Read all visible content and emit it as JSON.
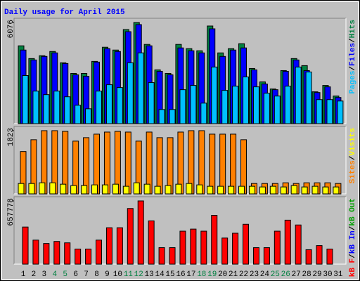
{
  "chart_data": [
    {
      "type": "bar",
      "title": "Daily usage for April 2015",
      "title_color": "#0000ff",
      "ylim": [
        0,
        6076
      ],
      "yticks": [
        6076
      ],
      "legend_separator": "/",
      "series": [
        {
          "name": "Pages",
          "color": "#00c0ff",
          "values": [
            2890,
            1955,
            1743,
            1955,
            1615,
            1105,
            893,
            1955,
            2338,
            2168,
            3655,
            4250,
            2465,
            850,
            850,
            2040,
            2295,
            1233,
            3400,
            1998,
            2253,
            2805,
            2210,
            1828,
            1658,
            2253,
            3400,
            3103,
            1445,
            1445,
            1360
          ]
        },
        {
          "name": "Files",
          "color": "#0000ff",
          "values": [
            4420,
            3825,
            4038,
            4250,
            3613,
            2933,
            2848,
            3698,
            4505,
            4335,
            5525,
            5950,
            4675,
            3145,
            2933,
            4548,
            4378,
            4250,
            5695,
            4038,
            4420,
            4548,
            3230,
            2380,
            2040,
            3145,
            3825,
            3188,
            1870,
            2210,
            1573
          ]
        },
        {
          "name": "Hits",
          "color": "#008040",
          "values": [
            4675,
            3910,
            4080,
            4335,
            3655,
            3018,
            3018,
            3740,
            4590,
            4420,
            5653,
            6076,
            4760,
            3230,
            3018,
            4760,
            4505,
            4378,
            5865,
            4250,
            4505,
            4803,
            3315,
            2508,
            2083,
            3188,
            3910,
            3485,
            1913,
            2295,
            1658
          ]
        }
      ]
    },
    {
      "type": "bar",
      "ylim": [
        0,
        1823
      ],
      "yticks": [
        1823
      ],
      "legend_separator": "/",
      "series": [
        {
          "name": "Sites",
          "color": "#ff8000",
          "values": [
            1222,
            1562,
            1823,
            1823,
            1803,
            1522,
            1622,
            1723,
            1783,
            1803,
            1783,
            1522,
            1783,
            1622,
            1622,
            1783,
            1823,
            1823,
            1723,
            1723,
            1723,
            1562,
            300,
            300,
            300,
            320,
            300,
            320,
            320,
            320,
            300
          ]
        },
        {
          "name": "Visits",
          "color": "#ffff00",
          "values": [
            300,
            300,
            320,
            320,
            280,
            240,
            240,
            260,
            260,
            280,
            220,
            320,
            280,
            220,
            240,
            280,
            300,
            260,
            220,
            220,
            220,
            220,
            220,
            200,
            220,
            200,
            240,
            200,
            220,
            200,
            200
          ]
        }
      ]
    },
    {
      "type": "bar",
      "ylim": [
        0,
        657778
      ],
      "yticks": [
        657778
      ],
      "legend_separator": "/",
      "series": [
        {
          "name": "kB F",
          "color": "#ff0000",
          "values": [
            386100,
            250250,
            214500,
            235950,
            221650,
            157300,
            157300,
            250250,
            378950,
            378950,
            579150,
            657778,
            450450,
            171600,
            171600,
            343200,
            364650,
            343200,
            507650,
            271700,
            321750,
            414700,
            171600,
            171600,
            343200,
            457600,
            407550,
            150150,
            193050,
            157300,
            0
          ]
        },
        {
          "name": "kB In",
          "color": "#0000ff",
          "values": [
            0,
            0,
            0,
            0,
            0,
            0,
            0,
            0,
            0,
            0,
            0,
            0,
            0,
            0,
            0,
            0,
            0,
            0,
            0,
            0,
            0,
            0,
            0,
            0,
            0,
            0,
            0,
            0,
            0,
            0,
            0
          ]
        },
        {
          "name": "kB Out",
          "color": "#00a000",
          "values": [
            0,
            0,
            0,
            0,
            0,
            0,
            0,
            0,
            0,
            0,
            0,
            0,
            0,
            0,
            0,
            0,
            0,
            0,
            0,
            0,
            0,
            0,
            0,
            0,
            0,
            0,
            0,
            0,
            0,
            0,
            0
          ]
        }
      ],
      "categories": [
        "1",
        "2",
        "3",
        "4",
        "5",
        "6",
        "7",
        "8",
        "9",
        "10",
        "11",
        "12",
        "13",
        "14",
        "15",
        "16",
        "17",
        "18",
        "19",
        "20",
        "21",
        "22",
        "23",
        "24",
        "25",
        "26",
        "27",
        "28",
        "29",
        "30",
        "31"
      ],
      "category_colors": [
        "#000000",
        "#000000",
        "#000000",
        "#008040",
        "#008040",
        "#000000",
        "#000000",
        "#000000",
        "#000000",
        "#000000",
        "#008040",
        "#008040",
        "#000000",
        "#000000",
        "#000000",
        "#000000",
        "#000000",
        "#008040",
        "#008040",
        "#000000",
        "#000000",
        "#000000",
        "#000000",
        "#000000",
        "#008040",
        "#008040",
        "#000000",
        "#000000",
        "#000000",
        "#000000",
        "#000000"
      ]
    }
  ]
}
